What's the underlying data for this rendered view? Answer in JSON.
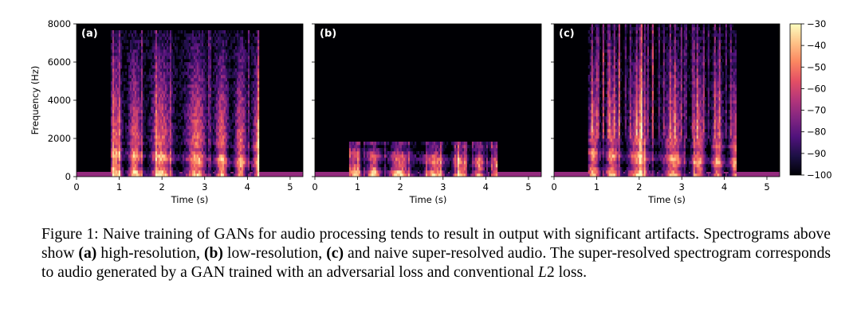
{
  "chart_data": [
    {
      "type": "heatmap",
      "panel_label": "(a)",
      "xlabel": "Time (s)",
      "ylabel": "Frequency (Hz)",
      "xlim": [
        0,
        5.3
      ],
      "ylim": [
        0,
        8000
      ],
      "xticks": [
        "0",
        "1",
        "2",
        "3",
        "4",
        "5"
      ],
      "yticks": [
        "0",
        "2000",
        "4000",
        "6000",
        "8000"
      ],
      "signal_start": 0.8,
      "signal_end": 4.25,
      "max_freq": 7700
    },
    {
      "type": "heatmap",
      "panel_label": "(b)",
      "xlabel": "Time (s)",
      "ylabel": "",
      "xlim": [
        0,
        5.3
      ],
      "ylim": [
        0,
        8000
      ],
      "xticks": [
        "0",
        "1",
        "2",
        "3",
        "4",
        "5"
      ],
      "yticks": [],
      "signal_start": 0.8,
      "signal_end": 4.25,
      "max_freq": 1900
    },
    {
      "type": "heatmap",
      "panel_label": "(c)",
      "xlabel": "Time (s)",
      "ylabel": "",
      "xlim": [
        0,
        5.3
      ],
      "ylim": [
        0,
        8000
      ],
      "xticks": [
        "0",
        "1",
        "2",
        "3",
        "4",
        "5"
      ],
      "yticks": [],
      "signal_start": 0.8,
      "signal_end": 4.25,
      "max_freq": 8000
    }
  ],
  "colorbar": {
    "ticks": [
      "-30",
      "-40",
      "-50",
      "-60",
      "-70",
      "-80",
      "-90",
      "-100"
    ],
    "range": [
      -100,
      -30
    ],
    "colormap": [
      "#000004",
      "#1c1044",
      "#4f127b",
      "#812581",
      "#b5367a",
      "#e55064",
      "#fb8761",
      "#fec287",
      "#fcfdbf"
    ]
  },
  "caption": {
    "figure_label": "Figure 1:",
    "t1": " Naive training of GANs for audio processing tends to result in output with significant artifacts.  Spectrograms above show ",
    "a": "(a)",
    "t2": " high-resolution, ",
    "b": "(b)",
    "t3": " low-resolution, ",
    "c": "(c)",
    "t4": " and naive super-resolved audio. The super-resolved spectrogram corresponds to audio generated by a GAN trained with an adversarial loss and conventional ",
    "loss_symbol": "L",
    "loss_number": "2",
    "t5": " loss."
  }
}
